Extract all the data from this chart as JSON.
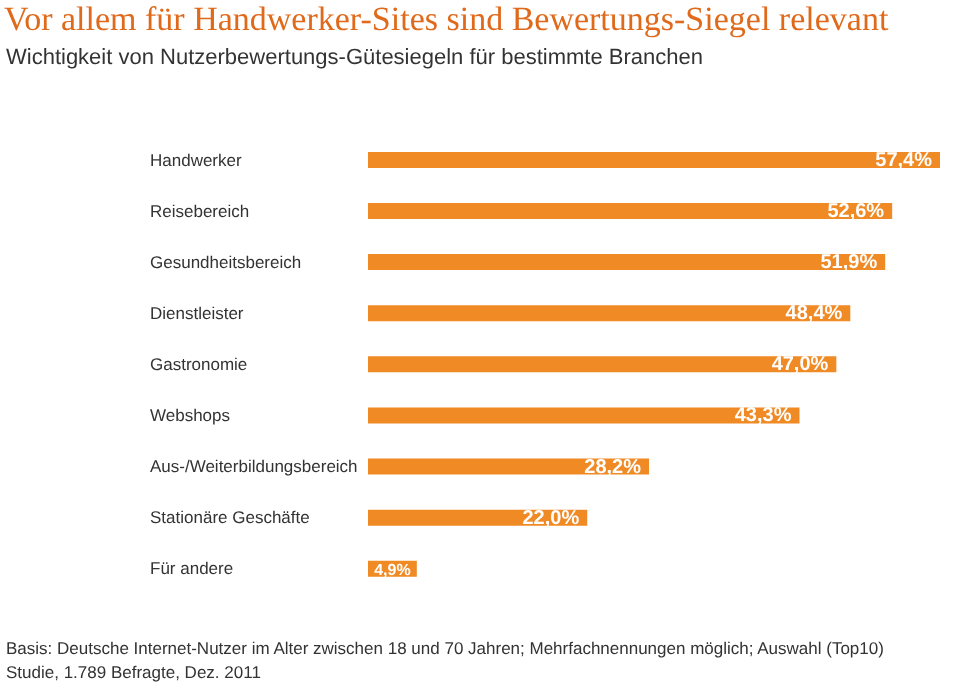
{
  "chart_data": {
    "type": "bar",
    "orientation": "horizontal",
    "title": "Vor allem für Handwerker-Sites sind Bewertungs-Siegel relevant",
    "subtitle": "Wichtigkeit von Nutzerbewertungs-Gütesiegeln für bestimmte Branchen",
    "categories": [
      "Handwerker",
      "Reisebereich",
      "Gesundheitsbereich",
      "Dienstleister",
      "Gastronomie",
      "Webshops",
      "Aus-/Weiterbildungsbereich",
      "Stationäre Geschäfte",
      "Für andere"
    ],
    "values": [
      57.4,
      52.6,
      51.9,
      48.4,
      47.0,
      43.3,
      28.2,
      22.0,
      4.9
    ],
    "value_labels": [
      "57,4%",
      "52,6%",
      "51,9%",
      "48,4%",
      "47,0%",
      "43,3%",
      "28,2%",
      "22,0%",
      "4,9%"
    ],
    "color": "#f08a24",
    "grid": false,
    "legend": false,
    "annotations": [
      "Basis: Deutsche Internet-Nutzer im Alter zwischen 18 und 70 Jahren; Mehrfachnennungen möglich; Auswahl (Top10)",
      "Studie, 1.789 Befragte, Dez. 2011"
    ]
  }
}
